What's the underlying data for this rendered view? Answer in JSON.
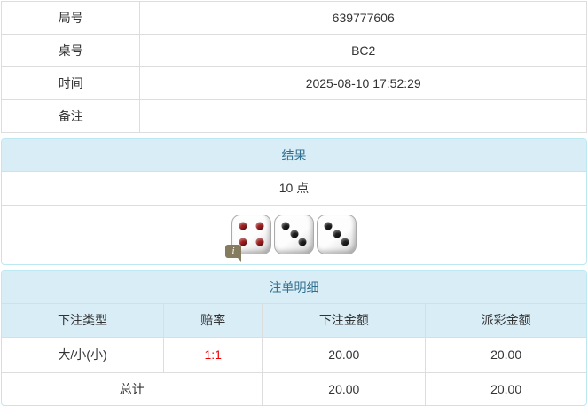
{
  "info_table": {
    "rows": [
      {
        "label": "局号",
        "value": "639777606"
      },
      {
        "label": "桌号",
        "value": "BC2"
      },
      {
        "label": "时间",
        "value": "2025-08-10 17:52:29"
      },
      {
        "label": "备注",
        "value": ""
      }
    ]
  },
  "result_panel": {
    "title": "结果",
    "points": "10 点",
    "dice": [
      {
        "value": 4,
        "color": "red"
      },
      {
        "value": 3,
        "color": "black"
      },
      {
        "value": 3,
        "color": "black"
      }
    ],
    "info_icon_glyph": "i"
  },
  "bets_panel": {
    "title": "注单明细",
    "columns": [
      "下注类型",
      "赔率",
      "下注金额",
      "派彩金额"
    ],
    "rows": [
      {
        "type": "大/小(小)",
        "odds": "1:1",
        "bet": "20.00",
        "payout": "20.00"
      }
    ],
    "total": {
      "label": "总计",
      "bet": "20.00",
      "payout": "20.00"
    }
  },
  "colors": {
    "panel_heading_bg": "#d9edf7",
    "panel_title_text": "#31708f",
    "panel_border": "#bce8f1",
    "table_border": "#dddddd",
    "text": "#333333",
    "odds_red": "#ee0000",
    "pip_red": "#9b1b1b",
    "pip_black": "#1c1c1c",
    "info_badge_bg": "#857b5f"
  }
}
